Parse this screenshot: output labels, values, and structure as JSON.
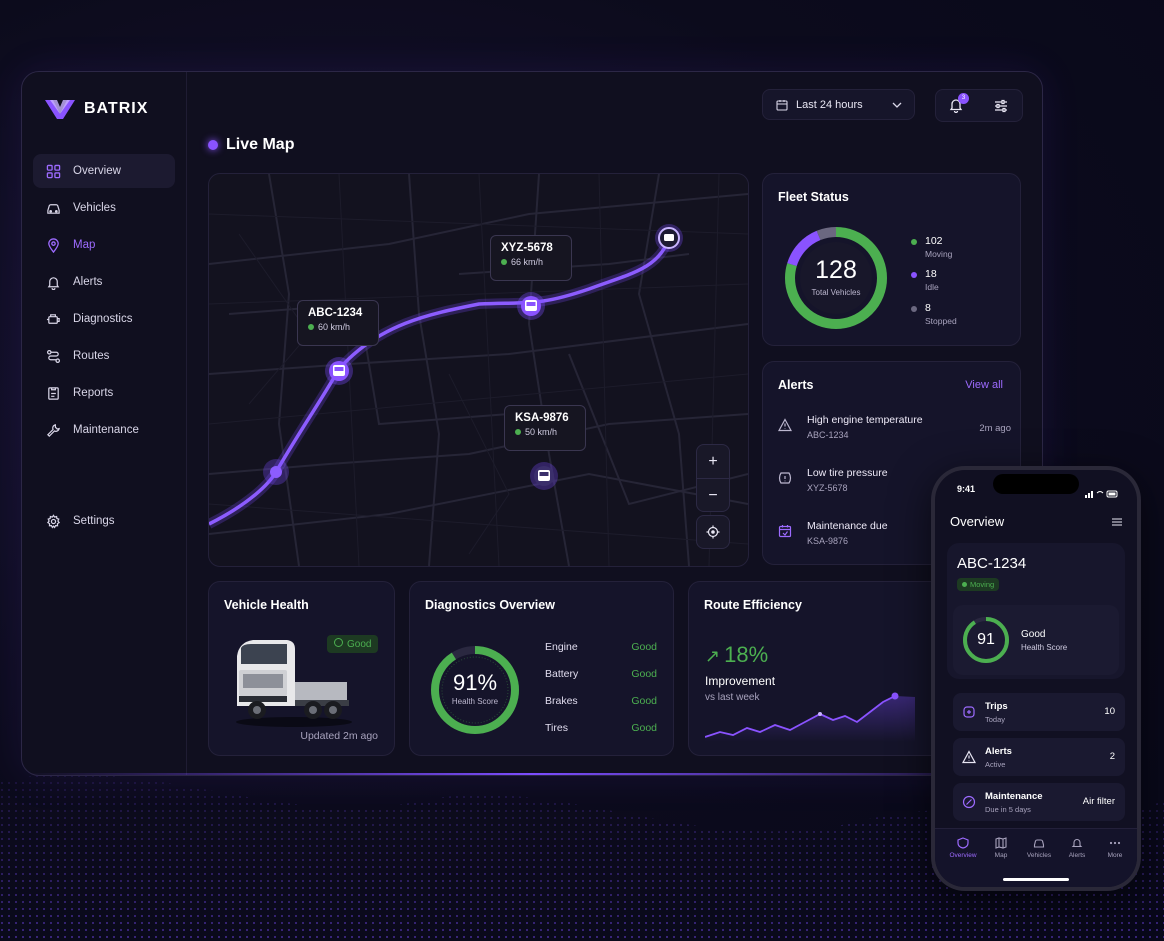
{
  "app": {
    "brand": "BATRIX"
  },
  "sidebar": {
    "items": [
      {
        "label": "Overview",
        "icon": "grid-icon"
      },
      {
        "label": "Vehicles",
        "icon": "car-icon"
      },
      {
        "label": "Map",
        "icon": "map-pin-icon"
      },
      {
        "label": "Alerts",
        "icon": "bell-icon"
      },
      {
        "label": "Diagnostics",
        "icon": "engine-icon"
      },
      {
        "label": "Routes",
        "icon": "route-icon"
      },
      {
        "label": "Reports",
        "icon": "report-icon"
      },
      {
        "label": "Maintenance",
        "icon": "wrench-icon"
      }
    ],
    "settings_label": "Settings"
  },
  "topbar": {
    "date_range": "Last 24 hours",
    "notification_count": "3"
  },
  "livemap": {
    "title": "Live Map",
    "vehicles": [
      {
        "id": "ABC-1234",
        "speed": "60 km/h"
      },
      {
        "id": "XYZ-5678",
        "speed": "66 km/h"
      },
      {
        "id": "KSA-9876",
        "speed": "50 km/h"
      }
    ],
    "zoom_in": "+",
    "zoom_out": "−"
  },
  "fleet_status": {
    "title": "Fleet Status",
    "total": "128",
    "total_label": "Total Vehicles",
    "moving": {
      "count": "102",
      "label": "Moving",
      "color": "#4caf50"
    },
    "idle": {
      "count": "18",
      "label": "Idle",
      "color": "#8a53ff"
    },
    "stopped": {
      "count": "8",
      "label": "Stopped",
      "color": "#6b6880"
    }
  },
  "alerts": {
    "title": "Alerts",
    "view_all": "View all",
    "items": [
      {
        "title": "High engine temperature",
        "vehicle": "ABC-1234",
        "time": "2m ago"
      },
      {
        "title": "Low tire pressure",
        "vehicle": "XYZ-5678"
      },
      {
        "title": "Maintenance due",
        "vehicle": "KSA-9876"
      }
    ]
  },
  "vehicle_health": {
    "title": "Vehicle Health",
    "badge": "Good",
    "updated": "Updated 2m ago"
  },
  "diagnostics": {
    "title": "Diagnostics Overview",
    "score": "91%",
    "score_label": "Health Score",
    "score_fraction": 0.91,
    "rows": [
      {
        "label": "Engine",
        "status": "Good"
      },
      {
        "label": "Battery",
        "status": "Good"
      },
      {
        "label": "Brakes",
        "status": "Good"
      },
      {
        "label": "Tires",
        "status": "Good"
      }
    ]
  },
  "route_efficiency": {
    "title": "Route Efficiency",
    "value": "18%",
    "label": "Improvement",
    "sub": "vs last week"
  },
  "phone": {
    "time": "9:41",
    "title": "Overview",
    "vehicle_id": "ABC-1234",
    "vehicle_status": "Moving",
    "health_score": "91",
    "health_label": "Good",
    "health_sub": "Health Score",
    "rows": [
      {
        "title": "Trips",
        "sub": "Today",
        "value": "10"
      },
      {
        "title": "Alerts",
        "sub": "Active",
        "value": "2"
      },
      {
        "title": "Maintenance",
        "sub": "Due in 5 days",
        "value": "Air filter"
      }
    ],
    "tabs": [
      "Overview",
      "Map",
      "Vehicles",
      "Alerts",
      "More"
    ]
  }
}
